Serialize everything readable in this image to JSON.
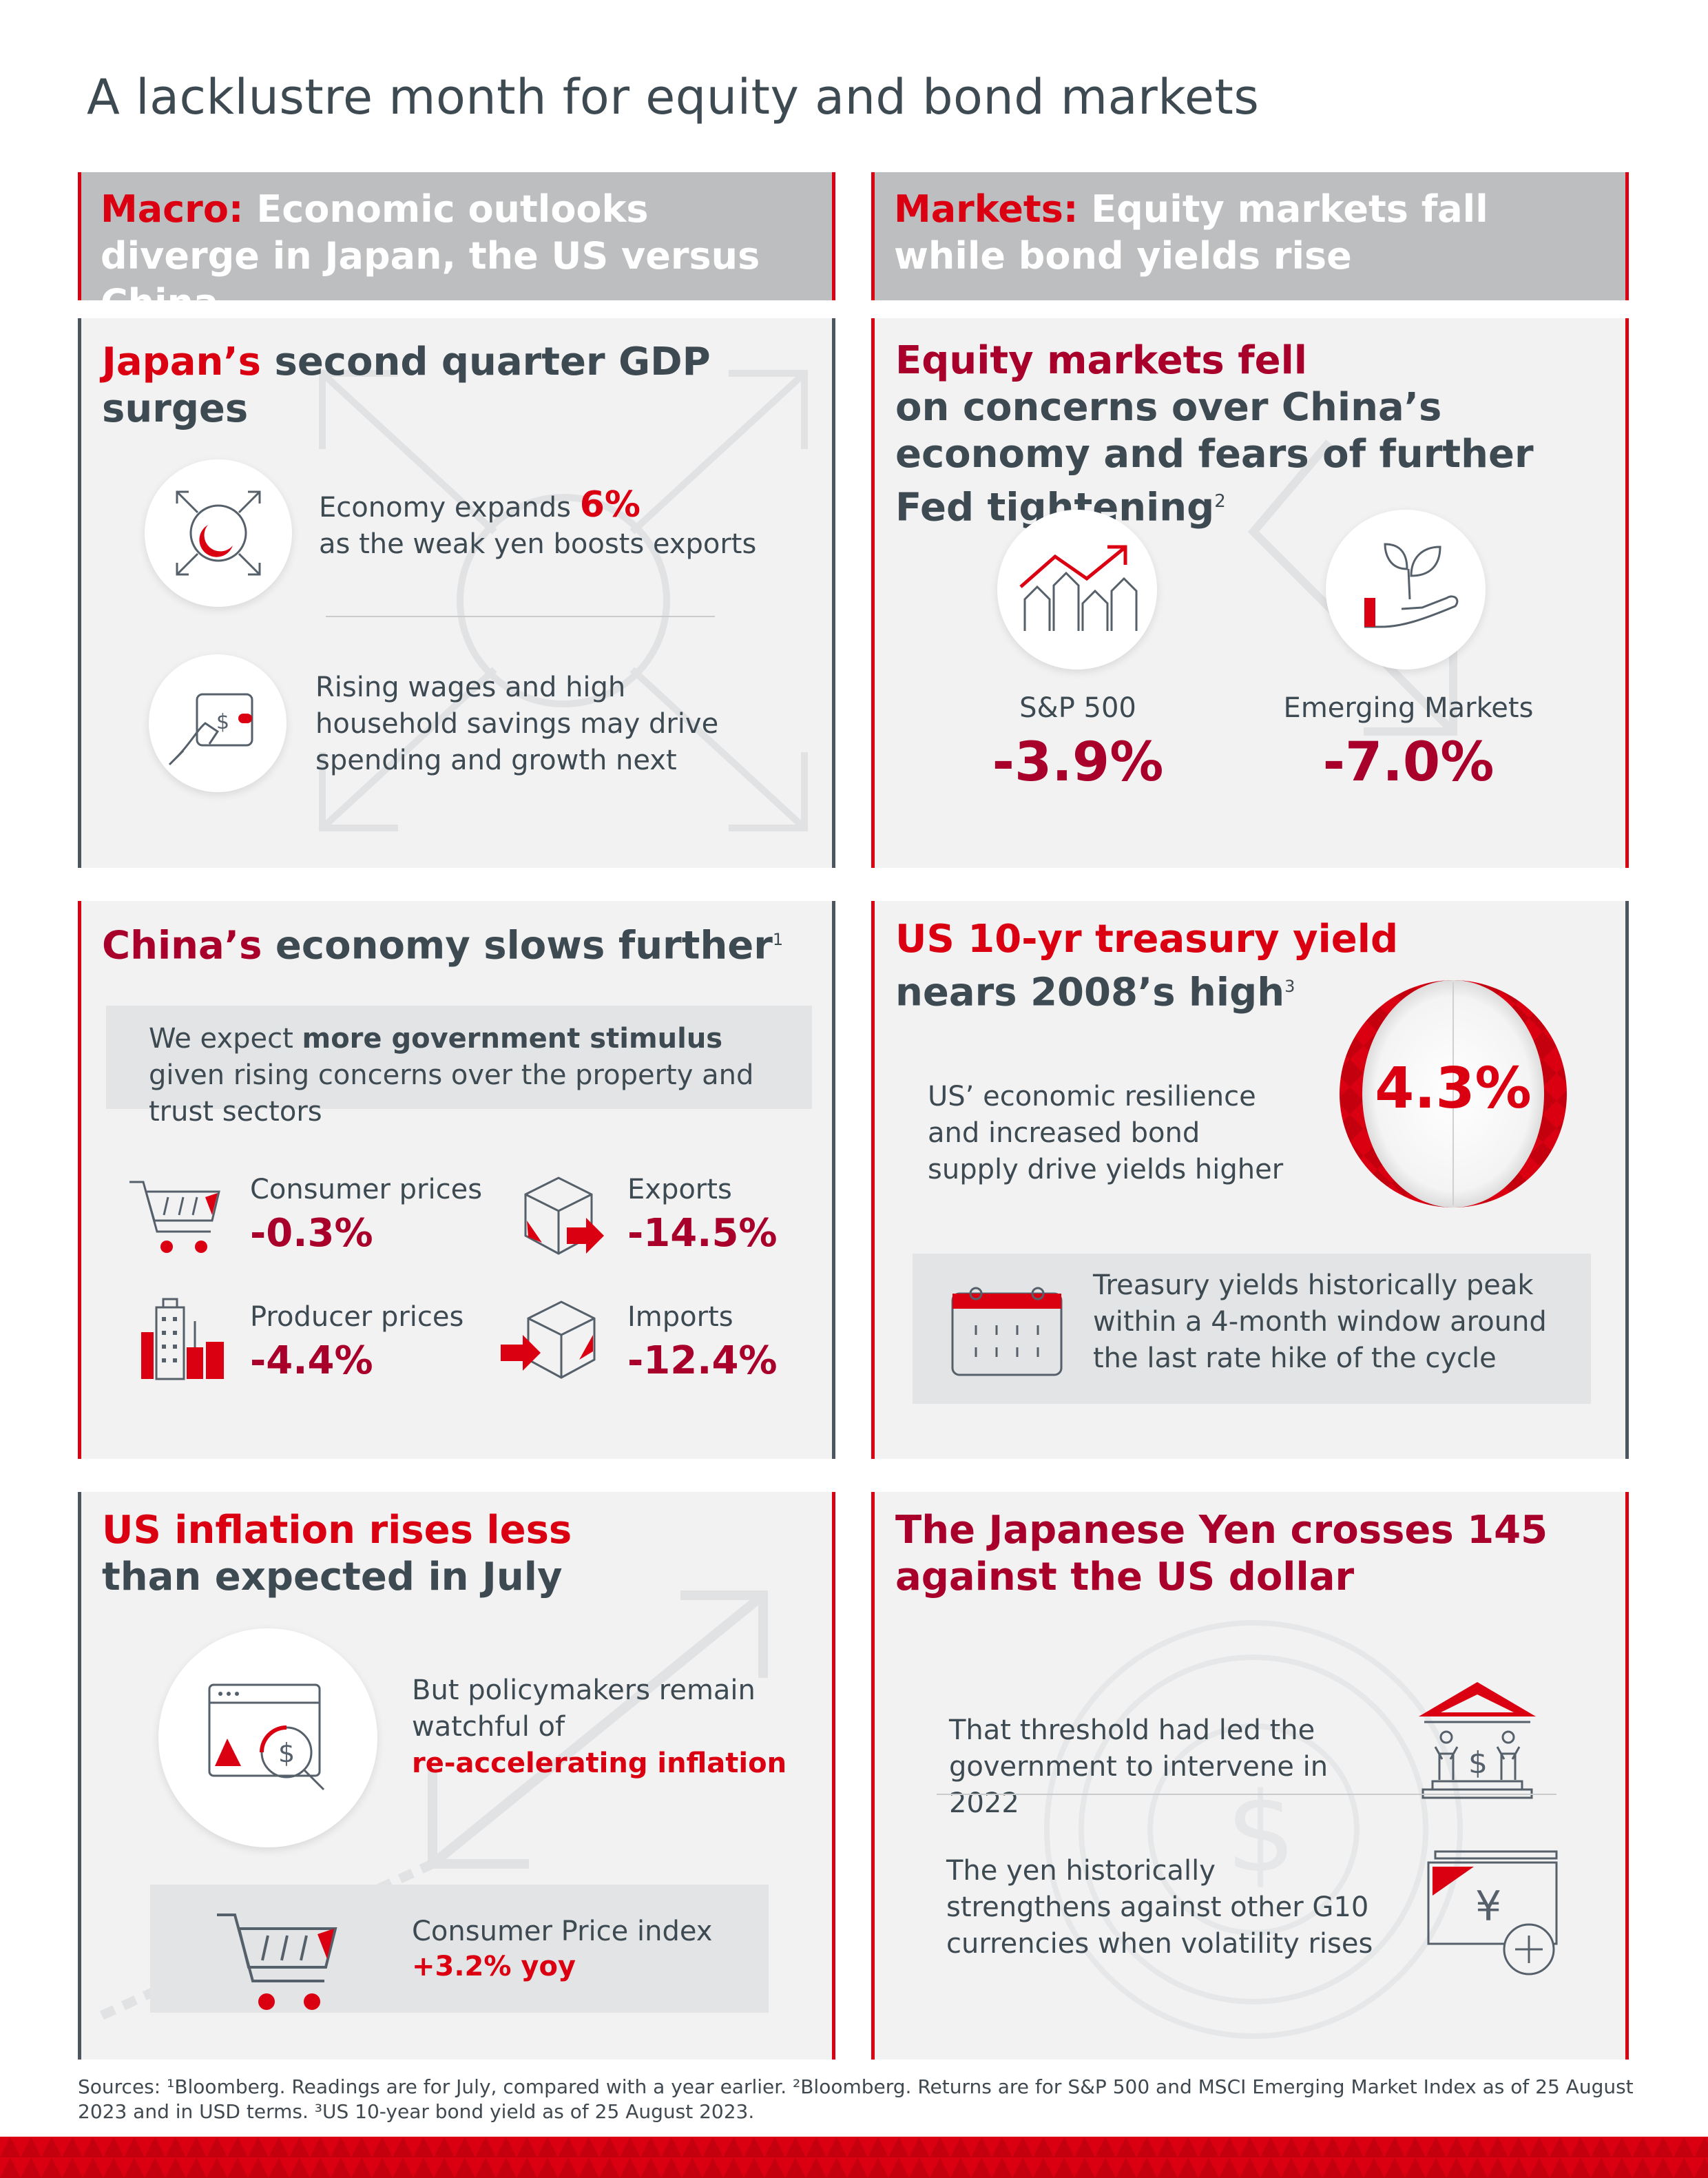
{
  "title": "A lacklustre month for equity and bond markets",
  "left_header": {
    "prefix": "Macro:",
    "text": "Economic outlooks diverge in Japan, the US versus China"
  },
  "right_header": {
    "prefix": "Markets:",
    "text": "Equity markets fall while bond yields rise"
  },
  "japan": {
    "title_red": "Japan’s",
    "title_rest": "second quarter GDP surges",
    "item1_line1": "Economy expands",
    "item1_value": "6%",
    "item1_line2": "as the weak yen boosts exports",
    "item2_text": "Rising wages and high household savings may drive spending and growth next"
  },
  "equity": {
    "title_red": "Equity markets fell",
    "title_rest": "on concerns over China’s economy and fears of further Fed tightening",
    "title_sup": "2",
    "sp_label": "S&P 500",
    "sp_value": "-3.9%",
    "em_label": "Emerging Markets",
    "em_value": "-7.0%"
  },
  "china": {
    "title_red": "China’s",
    "title_rest": "economy slows further",
    "title_sup": "1",
    "note_pre": "We expect",
    "note_bold": "more government stimulus",
    "note_post": "given rising concerns over the property and trust sectors",
    "stats": [
      {
        "label": "Consumer prices",
        "value": "-0.3%"
      },
      {
        "label": "Exports",
        "value": "-14.5%"
      },
      {
        "label": "Producer prices",
        "value": "-4.4%"
      },
      {
        "label": "Imports",
        "value": "-12.4%"
      }
    ]
  },
  "treasury": {
    "title_red": "US 10-yr treasury yield",
    "title_rest": "nears 2008’s high",
    "title_sup": "3",
    "text": "US’ economic resilience and increased bond supply drive yields higher",
    "value": "4.3%",
    "note": "Treasury yields historically peak within a 4-month window around the last rate hike of the cycle"
  },
  "inflation": {
    "title_red": "US inflation rises less",
    "title_rest": "than expected in July",
    "text_pre": "But policymakers remain watchful of",
    "text_red": "re-accelerating inflation",
    "cpi_label": "Consumer Price index",
    "cpi_value": "+3.2% yoy"
  },
  "yen": {
    "title": "The Japanese Yen crosses 145 against the US dollar",
    "item1": "That threshold had led the government to intervene in 2022",
    "item2": "The yen historically strengthens against other G10 currencies when volatility rises",
    "yen_symbol": "¥",
    "dollar_symbol": "$"
  },
  "sources": "Sources: ¹Bloomberg. Readings are for July, compared with a year earlier. ²Bloomberg. Returns are for S&P 500 and MSCI Emerging Market Index as of 25 August 2023 and in USD terms. ³US 10-year bond yield as of 25 August 2023.",
  "colors": {
    "accent_red": "#db0011",
    "crimson": "#a8002a",
    "slate": "#3e4a52",
    "header_grey": "#bcbec0",
    "panel_grey": "#f2f2f3"
  }
}
